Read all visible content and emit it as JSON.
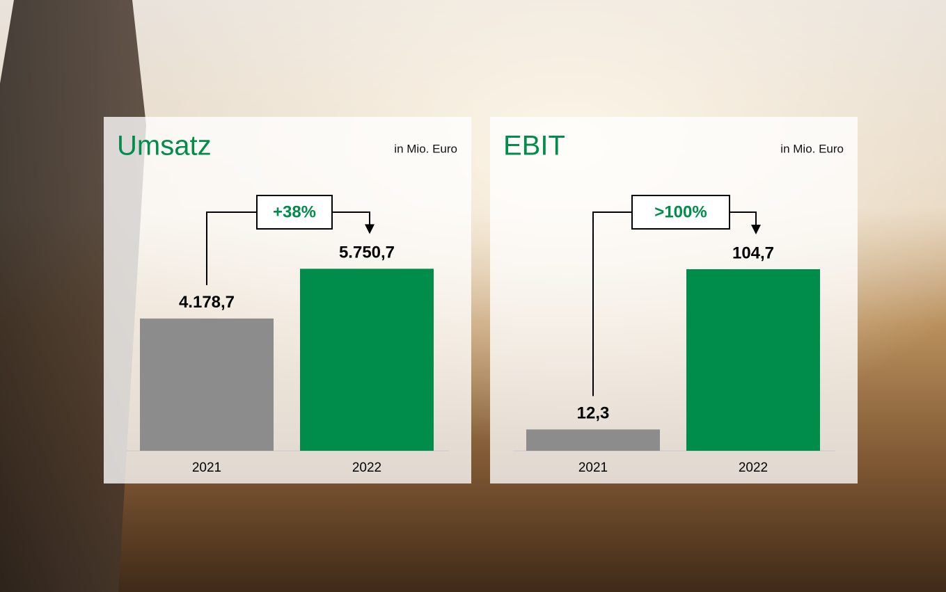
{
  "chart_data": [
    {
      "type": "bar",
      "title": "Umsatz",
      "unit": "in Mio. Euro",
      "categories": [
        "2021",
        "2022"
      ],
      "values": [
        4178.7,
        5750.7
      ],
      "value_labels": [
        "4.178,7",
        "5.750,7"
      ],
      "colors": [
        "#8c8c8c",
        "#008c4a"
      ],
      "change_label": "+38%",
      "ylim": [
        0,
        8000
      ]
    },
    {
      "type": "bar",
      "title": "EBIT",
      "unit": "in Mio. Euro",
      "categories": [
        "2021",
        "2022"
      ],
      "values": [
        12.3,
        104.7
      ],
      "value_labels": [
        "12,3",
        "104,7"
      ],
      "colors": [
        "#8c8c8c",
        "#008c4a"
      ],
      "change_label": ">100%",
      "ylim": [
        0,
        146
      ]
    }
  ]
}
